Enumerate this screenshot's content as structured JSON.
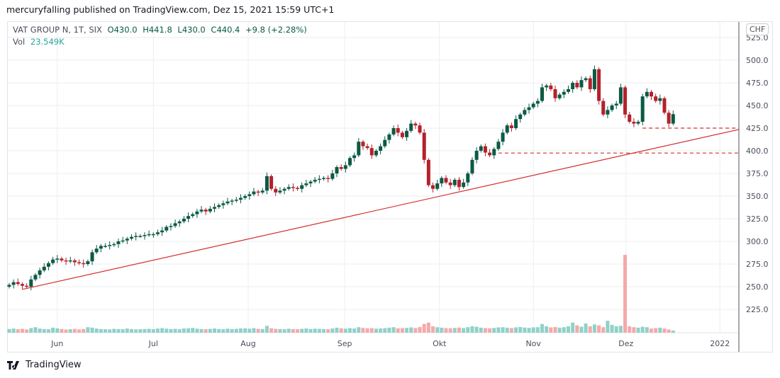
{
  "header": {
    "published": "mercuryfalling published on TradingView.com, Dez 15, 2021 15:59 UTC+1"
  },
  "legend": {
    "symbol": "VAT GROUP N, 1T, SIX",
    "open": "O430.0",
    "high": "H441.8",
    "low": "L430.0",
    "close": "C440.4",
    "change": "+9.8 (+2.28%)",
    "vol_label": "Vol",
    "vol_value": "23.549K"
  },
  "currency": "CHF",
  "logo": "TradingView",
  "colors": {
    "up": "#0b5a45",
    "down": "#b5202a",
    "vol_up": "#8fd1c8",
    "vol_down": "#f4a9a9",
    "drawing": "#d32f2f",
    "grid": "#eceef2"
  },
  "chart_data": {
    "type": "candlestick",
    "title": "VAT GROUP N, 1T, SIX",
    "ylabel": "CHF",
    "ylim": [
      200,
      530
    ],
    "grid": true,
    "y_ticks": [
      "525.0",
      "500.0",
      "475.0",
      "450.0",
      "425.0",
      "400.0",
      "375.0",
      "350.0",
      "325.0",
      "300.0",
      "275.0",
      "250.0",
      "225.0"
    ],
    "x_ticks": [
      {
        "label": "Jun",
        "index": 11
      },
      {
        "label": "Jul",
        "index": 33
      },
      {
        "label": "Aug",
        "index": 54.7
      },
      {
        "label": "Sep",
        "index": 76.8
      },
      {
        "label": "Okt",
        "index": 98.5
      },
      {
        "label": "Nov",
        "index": 120
      },
      {
        "label": "Dez",
        "index": 141.2
      },
      {
        "label": "2022",
        "index": 162.7
      }
    ],
    "first_close": 252,
    "close": [
      252,
      255,
      253,
      251,
      250,
      258,
      263,
      268,
      272,
      276,
      280,
      281,
      279,
      278,
      279,
      277,
      276,
      275,
      278,
      288,
      292,
      295,
      295,
      296,
      297,
      300,
      301,
      303,
      305,
      306,
      306,
      307,
      308,
      308,
      310,
      312,
      316,
      317,
      320,
      322,
      325,
      328,
      330,
      333,
      335,
      333,
      336,
      338,
      340,
      342,
      344,
      345,
      346,
      348,
      350,
      352,
      355,
      354,
      356,
      372,
      358,
      354,
      356,
      358,
      360,
      359,
      358,
      362,
      364,
      366,
      368,
      369,
      370,
      369,
      375,
      382,
      380,
      384,
      392,
      395,
      410,
      405,
      403,
      395,
      400,
      405,
      412,
      418,
      425,
      420,
      415,
      422,
      430,
      428,
      420,
      390,
      362,
      358,
      364,
      370,
      365,
      362,
      368,
      360,
      365,
      375,
      390,
      400,
      405,
      398,
      395,
      402,
      410,
      420,
      428,
      425,
      435,
      440,
      445,
      448,
      452,
      455,
      470,
      472,
      468,
      458,
      462,
      465,
      468,
      475,
      470,
      478,
      480,
      468,
      490,
      455,
      440,
      445,
      450,
      452,
      470,
      440,
      432,
      430,
      432,
      460,
      465,
      460,
      455,
      458,
      442,
      430,
      440.4
    ],
    "volume_k": [
      40,
      45,
      38,
      42,
      35,
      50,
      60,
      45,
      40,
      38,
      55,
      48,
      40,
      35,
      38,
      42,
      36,
      40,
      60,
      55,
      45,
      40,
      38,
      36,
      42,
      40,
      38,
      45,
      40,
      36,
      38,
      40,
      42,
      38,
      45,
      50,
      44,
      40,
      42,
      38,
      46,
      48,
      52,
      44,
      40,
      38,
      42,
      46,
      40,
      38,
      44,
      40,
      42,
      46,
      48,
      44,
      50,
      42,
      40,
      75,
      48,
      42,
      40,
      38,
      44,
      40,
      38,
      42,
      46,
      40,
      44,
      42,
      40,
      38,
      46,
      55,
      48,
      44,
      50,
      46,
      60,
      52,
      48,
      50,
      44,
      46,
      50,
      55,
      60,
      48,
      50,
      52,
      58,
      50,
      62,
      95,
      110,
      70,
      60,
      55,
      50,
      48,
      52,
      56,
      50,
      60,
      70,
      65,
      55,
      50,
      48,
      52,
      58,
      60,
      55,
      50,
      58,
      62,
      56,
      52,
      58,
      60,
      95,
      70,
      58,
      62,
      55,
      60,
      70,
      110,
      80,
      65,
      100,
      70,
      90,
      80,
      60,
      130,
      85,
      70,
      75,
      850,
      70,
      60,
      55,
      65,
      60,
      45,
      50,
      55,
      45,
      35,
      23.5
    ],
    "drawings": {
      "trendline": {
        "from_price": 247,
        "from_index": 3,
        "to_price": 423.5,
        "to_index": 166
      },
      "horizontal_levels": [
        {
          "price": 425,
          "from_index": 145
        },
        {
          "price": 397.5,
          "from_index": 112
        }
      ]
    }
  }
}
